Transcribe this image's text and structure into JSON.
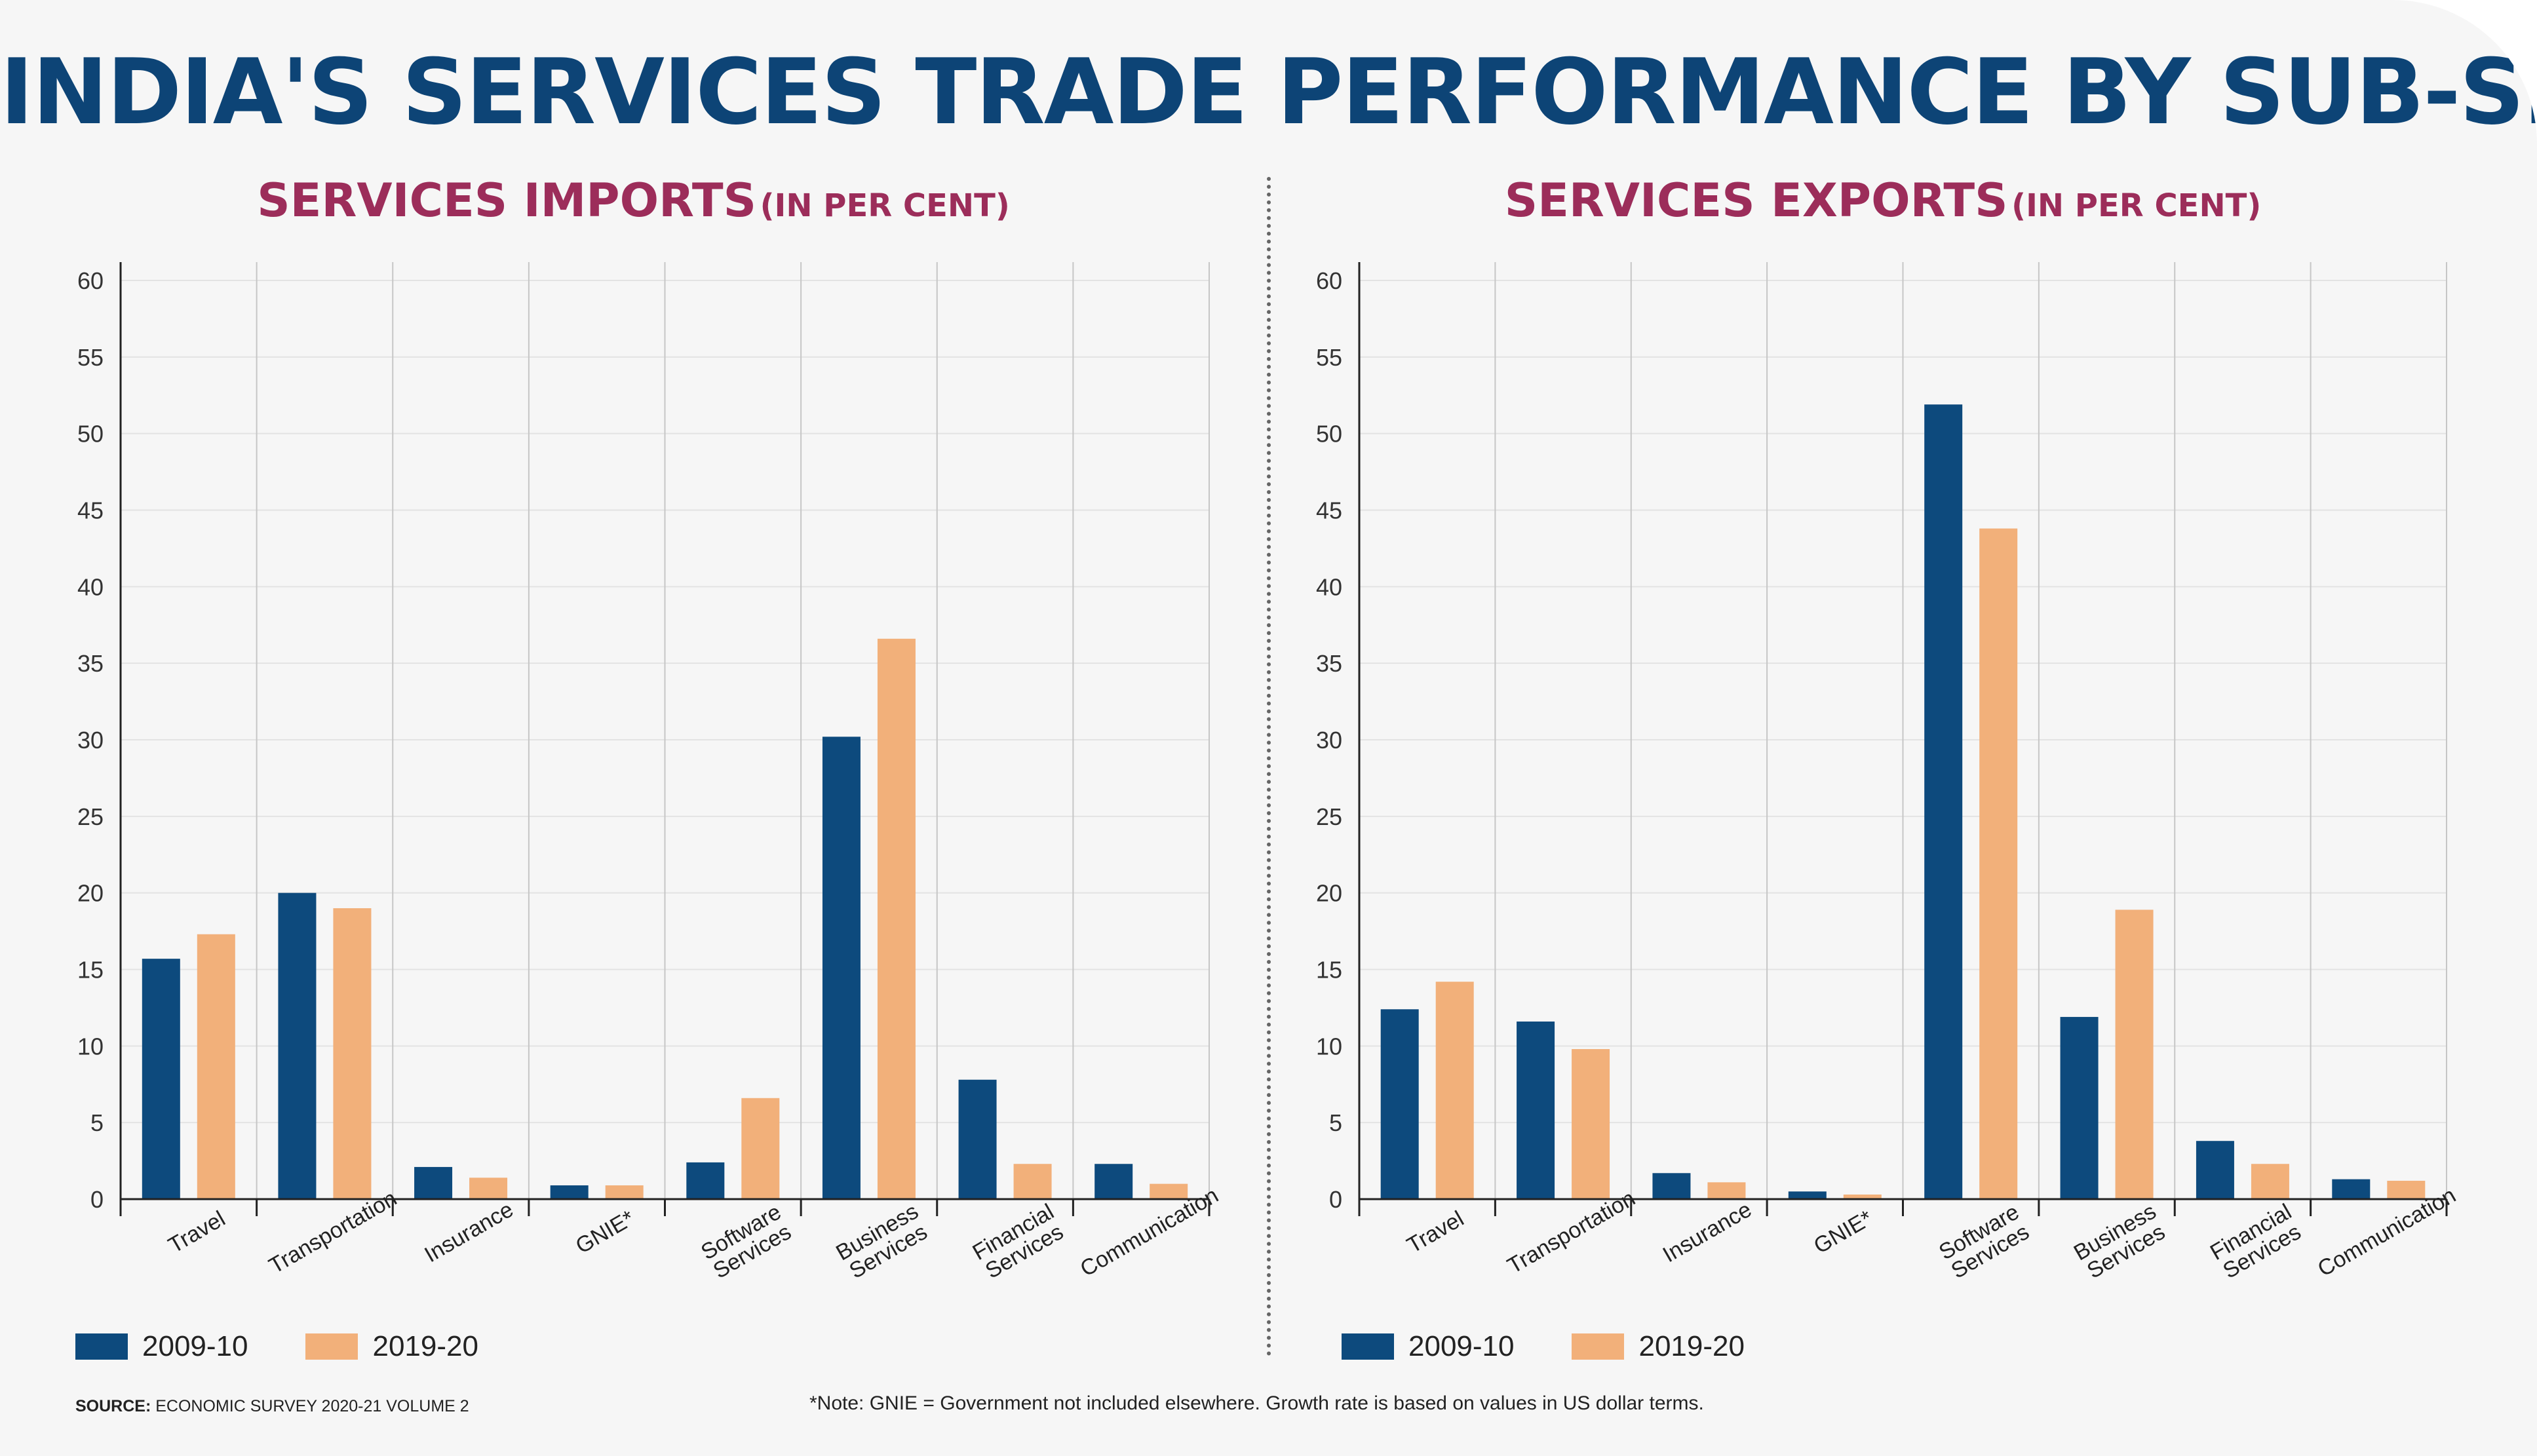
{
  "title": "INDIA'S SERVICES TRADE PERFORMANCE BY SUB-SECTOR",
  "colors": {
    "series_2009": "#0d4a7d",
    "series_2019": "#f2b07a",
    "title": "#0d4476",
    "subtitle": "#9c2d5a"
  },
  "legend": {
    "a": "2009-10",
    "b": "2019-20"
  },
  "source": {
    "label": "SOURCE:",
    "text": "ECONOMIC SURVEY 2020-21 VOLUME 2"
  },
  "note": "*Note: GNIE = Government not included elsewhere. Growth rate is based on values in US dollar terms.",
  "chart_data": [
    {
      "id": "imports",
      "type": "bar",
      "title": "SERVICES IMPORTS",
      "unit": "(IN PER CENT)",
      "categories": [
        "Travel",
        "Transportation",
        "Insurance",
        "GNIE*",
        "Software Services",
        "Business Services",
        "Financial Services",
        "Communication"
      ],
      "category_lines": [
        [
          "Travel"
        ],
        [
          "Transportation"
        ],
        [
          "Insurance"
        ],
        [
          "GNIE*"
        ],
        [
          "Software",
          "Services"
        ],
        [
          "Business",
          "Services"
        ],
        [
          "Financial",
          "Services"
        ],
        [
          "Communication"
        ]
      ],
      "series": [
        {
          "name": "2009-10",
          "values": [
            15.7,
            20.0,
            2.1,
            0.9,
            2.4,
            30.2,
            7.8,
            2.3
          ]
        },
        {
          "name": "2019-20",
          "values": [
            17.3,
            19.0,
            1.4,
            0.9,
            6.6,
            36.6,
            2.3,
            1.0
          ]
        }
      ],
      "ylim": [
        0,
        60
      ],
      "yticks": [
        "0",
        "5",
        "10",
        "15",
        "20",
        "25",
        "30",
        "35",
        "40",
        "45",
        "50",
        "55",
        "60"
      ]
    },
    {
      "id": "exports",
      "type": "bar",
      "title": "SERVICES EXPORTS",
      "unit": "(IN PER CENT)",
      "categories": [
        "Travel",
        "Transportation",
        "Insurance",
        "GNIE*",
        "Software Services",
        "Business Services",
        "Financial Services",
        "Communication"
      ],
      "category_lines": [
        [
          "Travel"
        ],
        [
          "Transportation"
        ],
        [
          "Insurance"
        ],
        [
          "GNIE*"
        ],
        [
          "Software",
          "Services"
        ],
        [
          "Business",
          "Services"
        ],
        [
          "Financial",
          "Services"
        ],
        [
          "Communication"
        ]
      ],
      "series": [
        {
          "name": "2009-10",
          "values": [
            12.4,
            11.6,
            1.7,
            0.5,
            51.9,
            11.9,
            3.8,
            1.3
          ]
        },
        {
          "name": "2019-20",
          "values": [
            14.2,
            9.8,
            1.1,
            0.3,
            43.8,
            18.9,
            2.3,
            1.2
          ]
        }
      ],
      "ylim": [
        0,
        60
      ],
      "yticks": [
        "0",
        "5",
        "10",
        "15",
        "20",
        "25",
        "30",
        "35",
        "40",
        "45",
        "50",
        "55",
        "60"
      ]
    }
  ]
}
